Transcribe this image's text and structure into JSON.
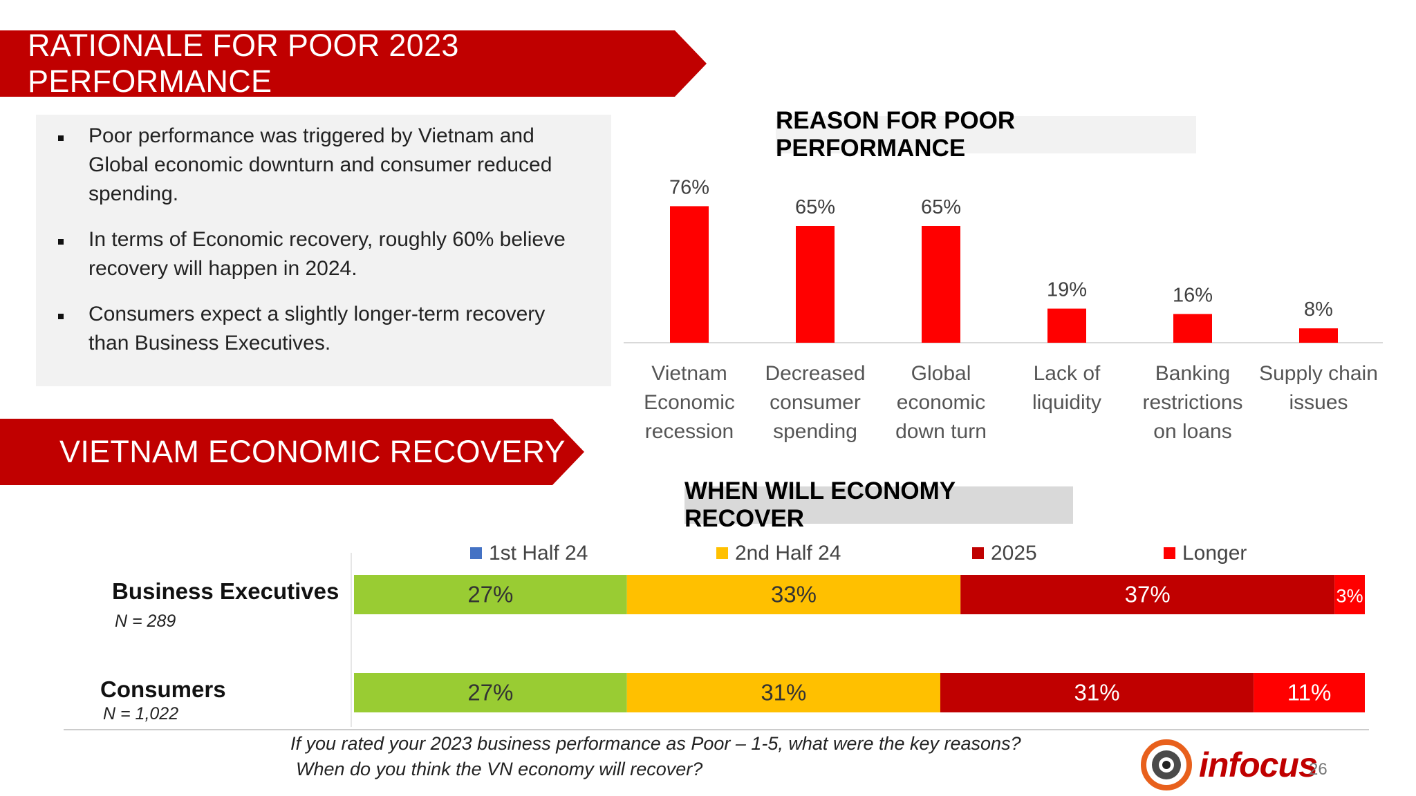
{
  "banners": {
    "rationale": "RATIONALE FOR POOR 2023 PERFORMANCE",
    "recovery": "VIETNAM ECONOMIC RECOVERY"
  },
  "summary": {
    "bullets": [
      "Poor performance was triggered by  Vietnam and Global economic downturn  and consumer reduced spending.",
      "In terms of Economic recovery, roughly 60% believe recovery will happen in 2024.",
      "Consumers expect a slightly longer-term recovery than Business Executives."
    ]
  },
  "chart_data": [
    {
      "type": "bar",
      "title": "REASON FOR POOR PERFORMANCE",
      "categories": [
        [
          "Vietnam",
          "Economic",
          "recession"
        ],
        [
          "Decreased",
          "consumer",
          "spending"
        ],
        [
          "Global",
          "economic",
          "down turn"
        ],
        [
          "Lack of",
          "liquidity"
        ],
        [
          "Banking",
          "restrictions",
          "on loans"
        ],
        [
          "Supply chain",
          "issues"
        ]
      ],
      "values": [
        76,
        65,
        65,
        19,
        16,
        8
      ],
      "value_labels": [
        "76%",
        "65%",
        "65%",
        "19%",
        "16%",
        "8%"
      ],
      "ylim": [
        0,
        100
      ],
      "bar_color": "#ff0000",
      "grid": false
    },
    {
      "type": "bar",
      "orientation": "horizontal-stacked",
      "title": "WHEN WILL ECONOMY RECOVER",
      "legend": [
        {
          "label": "1st Half 24",
          "color": "#4472c4"
        },
        {
          "label": "2nd Half 24",
          "color": "#ffc000"
        },
        {
          "label": "2025",
          "color": "#c00000"
        },
        {
          "label": "Longer",
          "color": "#ff0000"
        }
      ],
      "legend_position": "top",
      "segment_colors": [
        "#99cc33",
        "#ffc000",
        "#c00000",
        "#ff0000"
      ],
      "rows": [
        {
          "name": "Business Executives",
          "sample": "N = 289",
          "values": [
            27,
            33,
            37,
            3
          ],
          "labels": [
            "27%",
            "33%",
            "37%",
            "3%"
          ]
        },
        {
          "name": "Consumers",
          "sample": "N = 1,022",
          "values": [
            27,
            31,
            31,
            11
          ],
          "labels": [
            "27%",
            "31%",
            "31%",
            "11%"
          ]
        }
      ]
    }
  ],
  "footnote": {
    "line1": "If you rated your 2023 business performance as Poor – 1-5, what were the key reasons?",
    "line2": "When do you think the VN economy will recover?"
  },
  "logo": {
    "text_prefix": "in",
    "text_suffix": "focus"
  },
  "page_number": "26"
}
